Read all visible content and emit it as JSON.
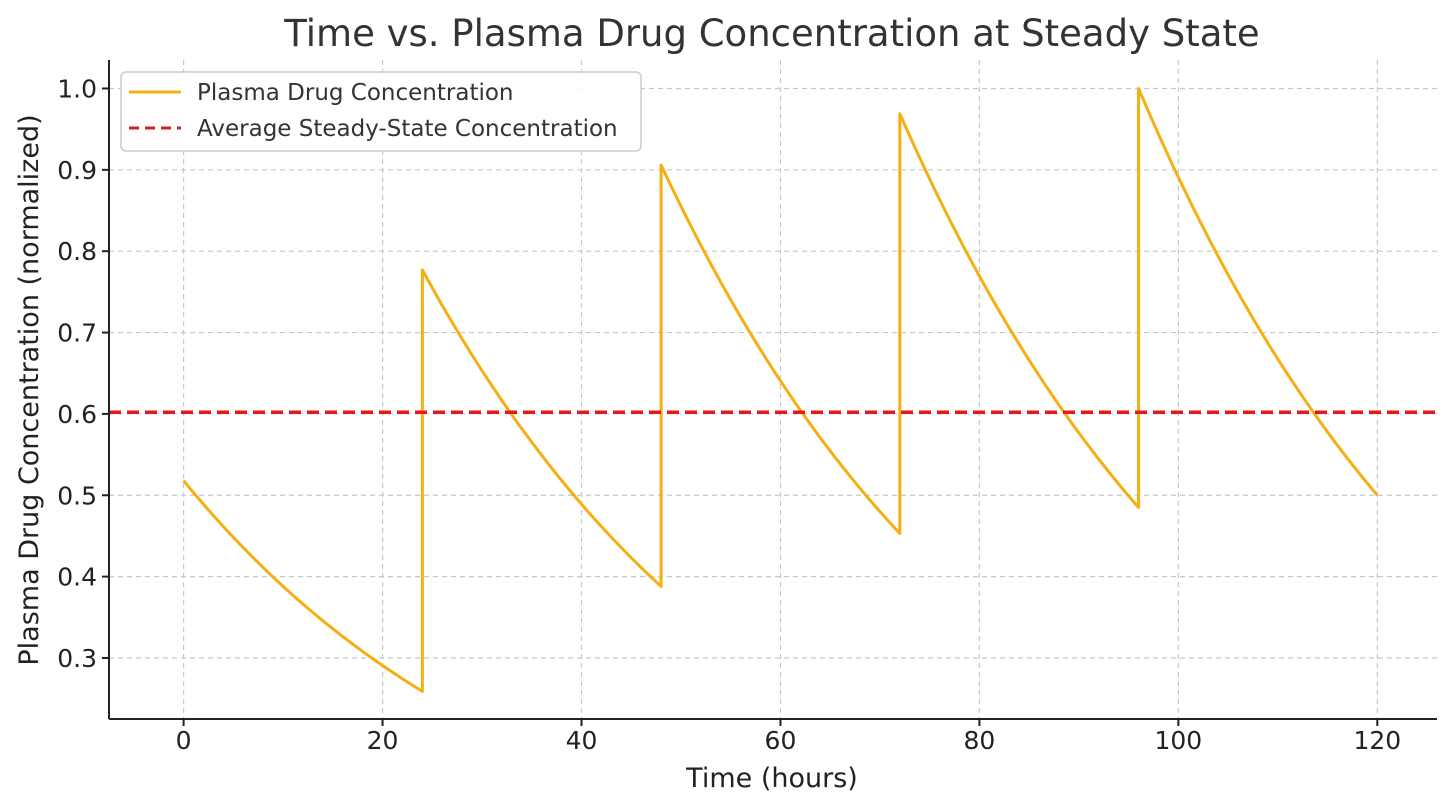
{
  "chart_data": {
    "type": "line",
    "title": "Time vs. Plasma Drug Concentration at Steady State",
    "xlabel": "Time (hours)",
    "ylabel": "Plasma Drug Concentration (normalized)",
    "xlim": [
      -7.5,
      126
    ],
    "ylim": [
      0.225,
      1.035
    ],
    "xticks": [
      0,
      20,
      40,
      60,
      80,
      100,
      120
    ],
    "xtick_labels": [
      "0",
      "20",
      "40",
      "60",
      "80",
      "100",
      "120"
    ],
    "yticks": [
      0.3,
      0.4,
      0.5,
      0.6,
      0.7,
      0.8,
      0.9,
      1.0
    ],
    "ytick_labels": [
      "0.3",
      "0.4",
      "0.5",
      "0.6",
      "0.7",
      "0.8",
      "0.9",
      "1.0"
    ],
    "grid": true,
    "legend_position": "top-left",
    "series": [
      {
        "name": "Plasma Drug Concentration",
        "color": "#F5AF12",
        "style": "solid",
        "segments": [
          {
            "t_start": 0,
            "t_end": 24,
            "c_start": 0.518,
            "c_end": 0.259
          },
          {
            "t_start": 24,
            "t_end": 48,
            "c_start": 0.777,
            "c_end": 0.388
          },
          {
            "t_start": 48,
            "t_end": 72,
            "c_start": 0.906,
            "c_end": 0.453
          },
          {
            "t_start": 72,
            "t_end": 96,
            "c_start": 0.969,
            "c_end": 0.485
          },
          {
            "t_start": 96,
            "t_end": 120,
            "c_start": 1.0,
            "c_end": 0.5
          }
        ]
      },
      {
        "name": "Average Steady-State Concentration",
        "color": "#E31A1C",
        "style": "dashed",
        "y": 0.602
      }
    ]
  }
}
